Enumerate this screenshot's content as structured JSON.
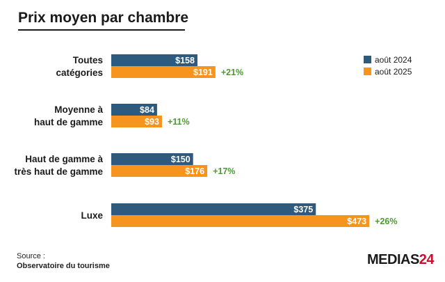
{
  "title": "Prix moyen par chambre",
  "source": {
    "label": "Source :",
    "org": "Observatoire du tourisme"
  },
  "logo": {
    "text": "MEDIAS",
    "number": "24"
  },
  "colors": {
    "aout_2024": "#2e5a7e",
    "aout_2025": "#f7941d",
    "delta": "#4a9a2f"
  },
  "chart_data": {
    "type": "bar",
    "orientation": "horizontal",
    "title": "Prix moyen par chambre",
    "legend_position": "top-right",
    "grid": false,
    "categories": [
      [
        "Toutes",
        "catégories"
      ],
      [
        "Moyenne à",
        "haut de gamme"
      ],
      [
        "Haut de gamme à",
        "très haut de gamme"
      ],
      [
        "Luxe"
      ]
    ],
    "series": [
      {
        "name": "août 2024",
        "values": [
          158,
          84,
          150,
          375
        ],
        "labels": [
          "$158",
          "$84",
          "$150",
          "$375"
        ]
      },
      {
        "name": "août 2025",
        "values": [
          191,
          93,
          176,
          473
        ],
        "labels": [
          "$191",
          "$93",
          "$176",
          "$473"
        ]
      }
    ],
    "changes": [
      "+21%",
      "+11%",
      "+17%",
      "+26%"
    ]
  }
}
